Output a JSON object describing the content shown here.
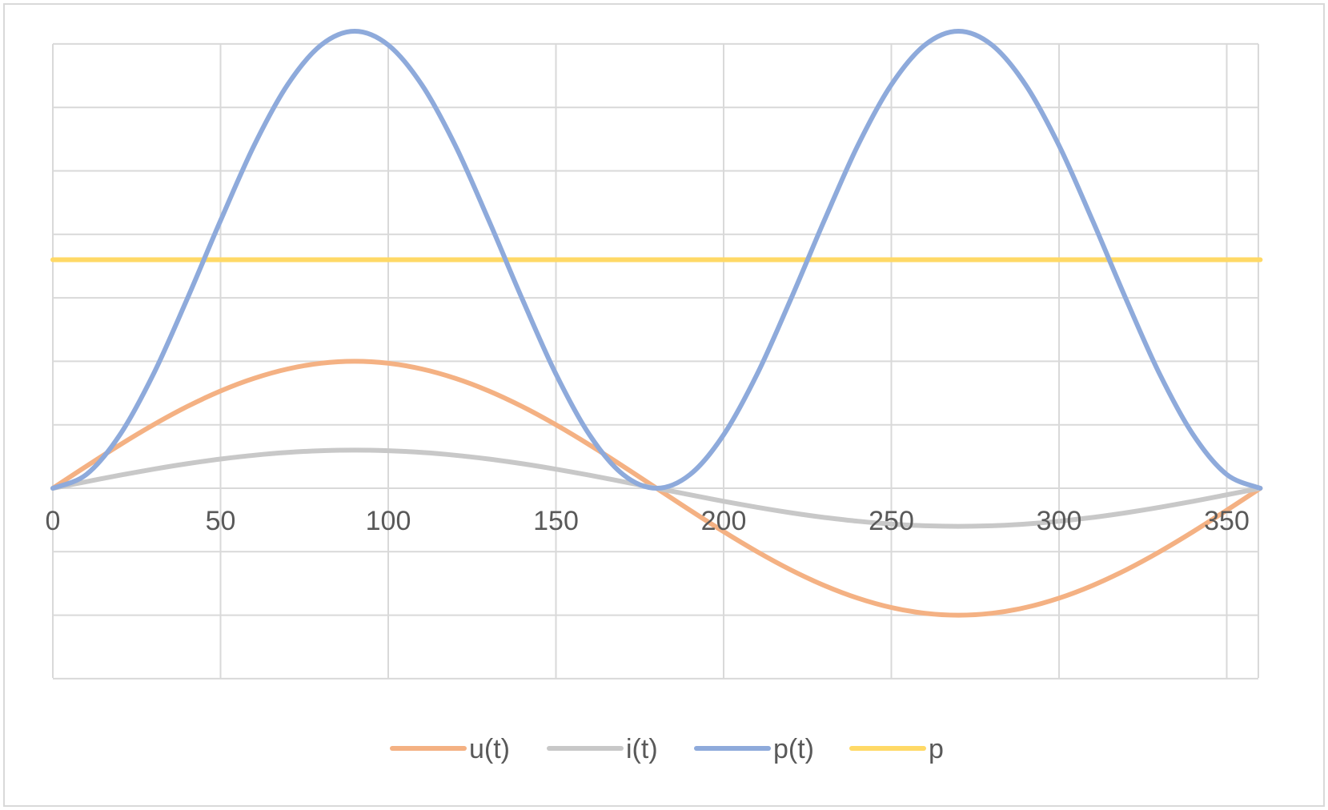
{
  "chart_data": {
    "type": "line",
    "x": [
      0,
      10,
      20,
      30,
      40,
      50,
      60,
      70,
      80,
      90,
      100,
      110,
      120,
      130,
      140,
      150,
      160,
      170,
      180,
      190,
      200,
      210,
      220,
      230,
      240,
      250,
      260,
      270,
      280,
      290,
      300,
      310,
      320,
      330,
      340,
      350,
      360
    ],
    "xlim": [
      0,
      360
    ],
    "ylim": [
      -3,
      7
    ],
    "x_tick_labels": [
      "0",
      "50",
      "100",
      "150",
      "200",
      "250",
      "300",
      "350"
    ],
    "x_tick_values": [
      0,
      50,
      100,
      150,
      200,
      250,
      300,
      350
    ],
    "y_gridlines": [
      -3,
      -2,
      -1,
      0,
      1,
      2,
      3,
      4,
      5,
      6,
      7
    ],
    "grid": true,
    "legend_position": "bottom",
    "series": [
      {
        "name": "u(t)",
        "color": "#f4b183",
        "values": [
          0,
          0.347,
          0.684,
          1,
          1.286,
          1.532,
          1.732,
          1.879,
          1.97,
          2,
          1.97,
          1.879,
          1.732,
          1.532,
          1.286,
          1,
          0.684,
          0.347,
          0,
          -0.347,
          -0.684,
          -1,
          -1.286,
          -1.532,
          -1.732,
          -1.879,
          -1.97,
          -2,
          -1.97,
          -1.879,
          -1.732,
          -1.532,
          -1.286,
          -1,
          -0.684,
          -0.347,
          0
        ]
      },
      {
        "name": "i(t)",
        "color": "#c8c8c8",
        "values": [
          0,
          0.104,
          0.205,
          0.3,
          0.386,
          0.46,
          0.52,
          0.564,
          0.591,
          0.6,
          0.591,
          0.564,
          0.52,
          0.46,
          0.386,
          0.3,
          0.205,
          0.104,
          0,
          -0.104,
          -0.205,
          -0.3,
          -0.386,
          -0.46,
          -0.52,
          -0.564,
          -0.591,
          -0.6,
          -0.591,
          -0.564,
          -0.52,
          -0.46,
          -0.386,
          -0.3,
          -0.205,
          -0.104,
          0
        ]
      },
      {
        "name": "p(t)",
        "color": "#8eaadb",
        "values": [
          0,
          0.217,
          0.842,
          1.8,
          2.976,
          4.217,
          5.4,
          6.358,
          6.983,
          7.2,
          6.983,
          6.358,
          5.4,
          4.217,
          2.976,
          1.8,
          0.842,
          0.217,
          0,
          0.217,
          0.842,
          1.8,
          2.976,
          4.217,
          5.4,
          6.358,
          6.983,
          7.2,
          6.983,
          6.358,
          5.4,
          4.217,
          2.976,
          1.8,
          0.842,
          0.217,
          0
        ]
      },
      {
        "name": "p",
        "color": "#ffd966",
        "values": [
          3.6,
          3.6,
          3.6,
          3.6,
          3.6,
          3.6,
          3.6,
          3.6,
          3.6,
          3.6,
          3.6,
          3.6,
          3.6,
          3.6,
          3.6,
          3.6,
          3.6,
          3.6,
          3.6,
          3.6,
          3.6,
          3.6,
          3.6,
          3.6,
          3.6,
          3.6,
          3.6,
          3.6,
          3.6,
          3.6,
          3.6,
          3.6,
          3.6,
          3.6,
          3.6,
          3.6,
          3.6
        ]
      }
    ]
  }
}
